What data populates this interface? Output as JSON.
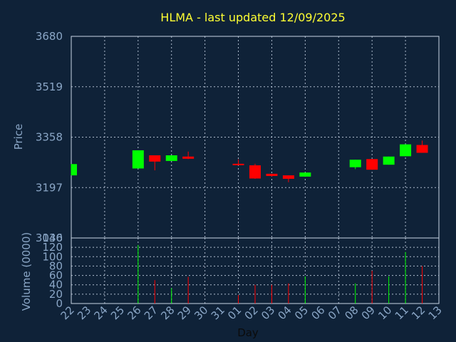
{
  "chart_data": [
    {
      "type": "candlestick",
      "title": "HLMA - last updated 12/09/2025",
      "ylabel": "Price",
      "ylim": [
        3036,
        3680
      ],
      "yticks": [
        3036,
        3197,
        3358,
        3519,
        3680
      ],
      "grid": true,
      "colors": {
        "up": "#00ff00",
        "down": "#ff0000",
        "background": "#0f2238",
        "title": "#ffff33",
        "tick": "#8aa6c6"
      },
      "candles": [
        {
          "day": "22",
          "open": 3236,
          "close": 3272,
          "high": 3272,
          "low": 3236
        },
        {
          "day": "26",
          "open": 3258,
          "close": 3316,
          "high": 3316,
          "low": 3258
        },
        {
          "day": "27",
          "open": 3300,
          "close": 3280,
          "high": 3300,
          "low": 3252
        },
        {
          "day": "28",
          "open": 3282,
          "close": 3300,
          "high": 3300,
          "low": 3282
        },
        {
          "day": "29",
          "open": 3296,
          "close": 3289,
          "high": 3312,
          "low": 3288
        },
        {
          "day": "01",
          "open": 3273,
          "close": 3269,
          "high": 3287,
          "low": 3268
        },
        {
          "day": "02",
          "open": 3268,
          "close": 3226,
          "high": 3273,
          "low": 3225
        },
        {
          "day": "03",
          "open": 3241,
          "close": 3234,
          "high": 3241,
          "low": 3232
        },
        {
          "day": "04",
          "open": 3236,
          "close": 3225,
          "high": 3236,
          "low": 3214
        },
        {
          "day": "05",
          "open": 3232,
          "close": 3245,
          "high": 3245,
          "low": 3232
        },
        {
          "day": "08",
          "open": 3262,
          "close": 3286,
          "high": 3286,
          "low": 3256
        },
        {
          "day": "09",
          "open": 3288,
          "close": 3254,
          "high": 3288,
          "low": 3254
        },
        {
          "day": "10",
          "open": 3270,
          "close": 3296,
          "high": 3296,
          "low": 3270
        },
        {
          "day": "11",
          "open": 3297,
          "close": 3335,
          "high": 3335,
          "low": 3297
        },
        {
          "day": "12",
          "open": 3333,
          "close": 3308,
          "high": 3347,
          "low": 3308
        }
      ]
    },
    {
      "type": "bar",
      "ylabel": "Volume (0000)",
      "xlabel": "Day",
      "ylim": [
        0,
        140
      ],
      "yticks": [
        0,
        20,
        40,
        60,
        80,
        100,
        120,
        140
      ],
      "categories": [
        "22",
        "23",
        "24",
        "25",
        "26",
        "27",
        "28",
        "29",
        "30",
        "31",
        "01",
        "02",
        "03",
        "04",
        "05",
        "06",
        "07",
        "08",
        "09",
        "10",
        "11",
        "12",
        "13"
      ],
      "bars": [
        {
          "day": "26",
          "value": 125,
          "color": "#00ff00"
        },
        {
          "day": "27",
          "value": 50,
          "color": "#ff0000"
        },
        {
          "day": "28",
          "value": 33,
          "color": "#00ff00"
        },
        {
          "day": "29",
          "value": 57,
          "color": "#ff0000"
        },
        {
          "day": "01",
          "value": 18,
          "color": "#ff0000"
        },
        {
          "day": "02",
          "value": 40,
          "color": "#ff0000"
        },
        {
          "day": "03",
          "value": 40,
          "color": "#ff0000"
        },
        {
          "day": "04",
          "value": 43,
          "color": "#ff0000"
        },
        {
          "day": "05",
          "value": 58,
          "color": "#00ff00"
        },
        {
          "day": "08",
          "value": 43,
          "color": "#00ff00"
        },
        {
          "day": "09",
          "value": 70,
          "color": "#ff0000"
        },
        {
          "day": "10",
          "value": 58,
          "color": "#00ff00"
        },
        {
          "day": "11",
          "value": 110,
          "color": "#00ff00"
        },
        {
          "day": "12",
          "value": 80,
          "color": "#ff0000"
        }
      ]
    }
  ]
}
